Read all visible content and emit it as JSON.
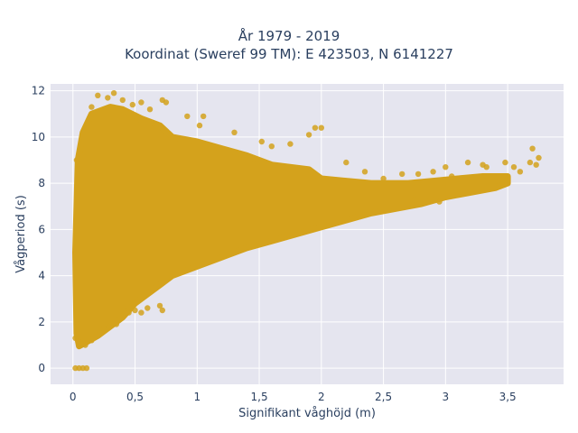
{
  "chart_data": {
    "type": "scatter",
    "title": "År 1979 - 2019",
    "subtitle": "Koordinat (Sweref 99 TM): E 423503, N 6141227",
    "xlabel": "Signifikant våghöjd (m)",
    "ylabel": "Vågperiod (s)",
    "xlim": [
      -0.18,
      3.95
    ],
    "ylim": [
      -0.7,
      12.3
    ],
    "xticks": [
      0,
      0.5,
      1,
      1.5,
      2,
      2.5,
      3,
      3.5
    ],
    "xtick_labels": [
      "0",
      "0,5",
      "1",
      "1,5",
      "2",
      "2,5",
      "3",
      "3,5"
    ],
    "yticks": [
      0,
      2,
      4,
      6,
      8,
      10,
      12
    ],
    "ytick_labels": [
      "0",
      "2",
      "4",
      "6",
      "8",
      "10",
      "12"
    ],
    "grid": true,
    "marker_color": "#D4A21C",
    "plot_background": "#E5E5EF",
    "points": [
      {
        "x": 0.02,
        "y": 0.0
      },
      {
        "x": 0.05,
        "y": 0.0
      },
      {
        "x": 0.08,
        "y": 0.0
      },
      {
        "x": 0.11,
        "y": 0.0
      },
      {
        "x": 0.03,
        "y": 9.0
      },
      {
        "x": 0.02,
        "y": 1.3
      },
      {
        "x": 0.06,
        "y": 1.1
      },
      {
        "x": 0.1,
        "y": 1.0
      },
      {
        "x": 0.15,
        "y": 11.3
      },
      {
        "x": 0.2,
        "y": 11.8
      },
      {
        "x": 0.28,
        "y": 11.7
      },
      {
        "x": 0.33,
        "y": 11.9
      },
      {
        "x": 0.4,
        "y": 11.6
      },
      {
        "x": 0.48,
        "y": 11.4
      },
      {
        "x": 0.55,
        "y": 11.5
      },
      {
        "x": 0.62,
        "y": 11.2
      },
      {
        "x": 0.72,
        "y": 11.6
      },
      {
        "x": 0.75,
        "y": 11.5
      },
      {
        "x": 0.92,
        "y": 10.9
      },
      {
        "x": 1.05,
        "y": 10.9
      },
      {
        "x": 1.02,
        "y": 10.5
      },
      {
        "x": 0.55,
        "y": 10.7
      },
      {
        "x": 0.65,
        "y": 10.6
      },
      {
        "x": 1.3,
        "y": 10.2
      },
      {
        "x": 1.52,
        "y": 9.8
      },
      {
        "x": 1.6,
        "y": 9.6
      },
      {
        "x": 1.75,
        "y": 9.7
      },
      {
        "x": 1.95,
        "y": 10.4
      },
      {
        "x": 2.0,
        "y": 10.4
      },
      {
        "x": 1.9,
        "y": 10.1
      },
      {
        "x": 2.2,
        "y": 8.9
      },
      {
        "x": 2.35,
        "y": 8.5
      },
      {
        "x": 2.5,
        "y": 8.2
      },
      {
        "x": 2.65,
        "y": 8.4
      },
      {
        "x": 2.78,
        "y": 8.4
      },
      {
        "x": 2.9,
        "y": 8.5
      },
      {
        "x": 3.0,
        "y": 8.7
      },
      {
        "x": 3.18,
        "y": 8.9
      },
      {
        "x": 3.3,
        "y": 8.8
      },
      {
        "x": 3.33,
        "y": 8.7
      },
      {
        "x": 3.48,
        "y": 8.9
      },
      {
        "x": 3.55,
        "y": 8.7
      },
      {
        "x": 3.6,
        "y": 8.5
      },
      {
        "x": 3.68,
        "y": 8.9
      },
      {
        "x": 3.7,
        "y": 9.5
      },
      {
        "x": 3.73,
        "y": 8.8
      },
      {
        "x": 3.75,
        "y": 9.1
      },
      {
        "x": 3.05,
        "y": 8.3
      },
      {
        "x": 3.2,
        "y": 8.2
      },
      {
        "x": 3.4,
        "y": 8.1
      },
      {
        "x": 2.75,
        "y": 7.3
      },
      {
        "x": 2.95,
        "y": 7.2
      },
      {
        "x": 3.1,
        "y": 7.5
      },
      {
        "x": 0.45,
        "y": 2.4
      },
      {
        "x": 0.5,
        "y": 2.5
      },
      {
        "x": 0.55,
        "y": 2.4
      },
      {
        "x": 0.6,
        "y": 2.6
      },
      {
        "x": 0.7,
        "y": 2.7
      },
      {
        "x": 0.72,
        "y": 2.5
      },
      {
        "x": 0.25,
        "y": 1.7
      },
      {
        "x": 0.35,
        "y": 1.9
      },
      {
        "x": 0.15,
        "y": 1.2
      },
      {
        "x": 0.08,
        "y": 1.05
      }
    ]
  }
}
